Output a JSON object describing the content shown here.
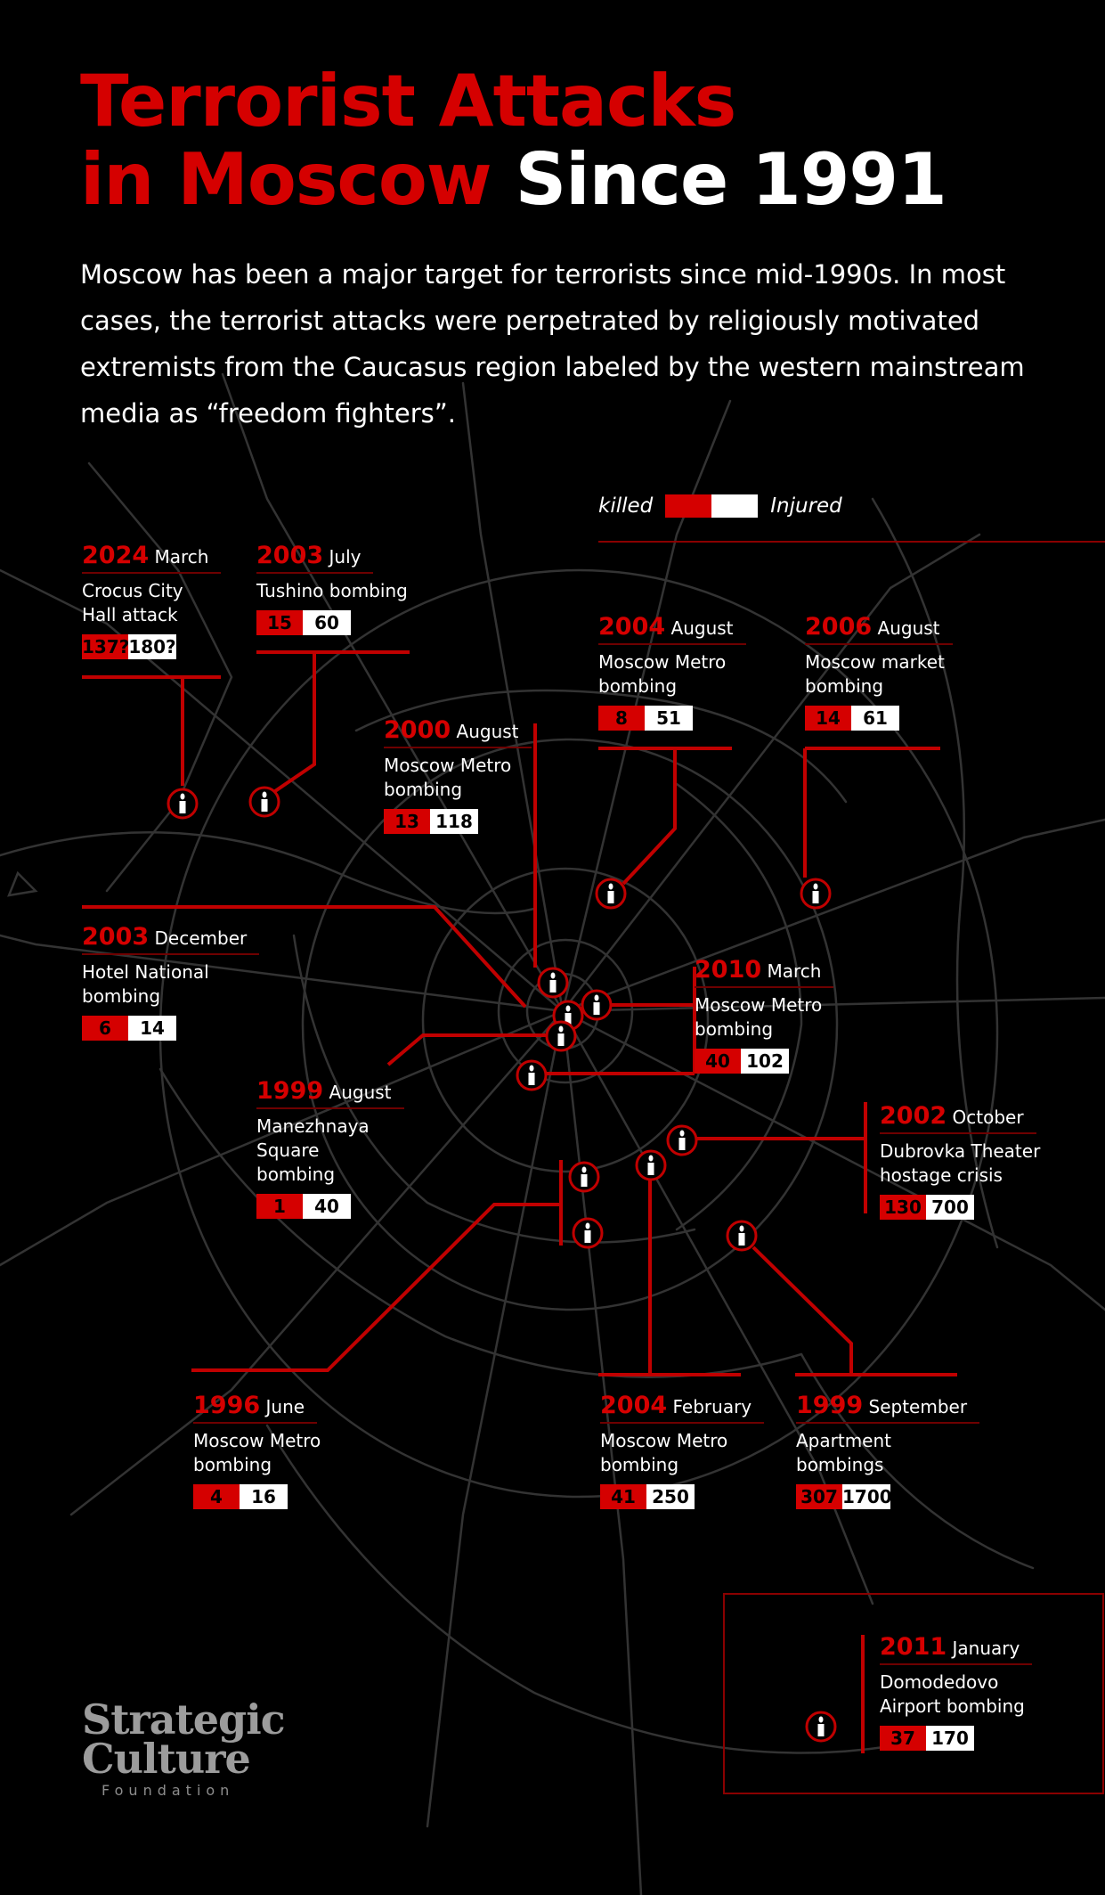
{
  "title": {
    "line1": "Terrorist Attacks",
    "line2_red": "in Moscow",
    "line2_white": "Since 1991"
  },
  "intro": "Moscow has been a major target for terrorists since mid-1990s. In most cases, the terrorist attacks were perpetrated by religiously motivated extremists from the Caucasus region labeled by the western mainstream media as “freedom fighters”.",
  "legend": {
    "killed": "killed",
    "injured": "Injured"
  },
  "colors": {
    "accent": "#d50000",
    "background": "#000000",
    "roads": "#3a3a3a"
  },
  "marker_icon": "candle-icon",
  "events": [
    {
      "id": "2024-march",
      "year": "2024",
      "month": "March",
      "name": "Crocus City Hall attack",
      "name_lines": [
        "Crocus City",
        "Hall attack"
      ],
      "killed": "137?",
      "injured": "180?"
    },
    {
      "id": "2003-july",
      "year": "2003",
      "month": "July",
      "name_lines": [
        "Tushino bombing"
      ],
      "killed": "15",
      "injured": "60"
    },
    {
      "id": "2004-august",
      "year": "2004",
      "month": "August",
      "name_lines": [
        "Moscow Metro",
        "bombing"
      ],
      "killed": "8",
      "injured": "51"
    },
    {
      "id": "2006-august",
      "year": "2006",
      "month": "August",
      "name_lines": [
        "Moscow market",
        "bombing"
      ],
      "killed": "14",
      "injured": "61"
    },
    {
      "id": "2000-august",
      "year": "2000",
      "month": "August",
      "name_lines": [
        "Moscow Metro",
        "bombing"
      ],
      "killed": "13",
      "injured": "118"
    },
    {
      "id": "2003-december",
      "year": "2003",
      "month": "December",
      "name_lines": [
        "Hotel National",
        "bombing"
      ],
      "killed": "6",
      "injured": "14"
    },
    {
      "id": "2010-march",
      "year": "2010",
      "month": "March",
      "name_lines": [
        "Moscow Metro",
        "bombing"
      ],
      "killed": "40",
      "injured": "102"
    },
    {
      "id": "1999-august",
      "year": "1999",
      "month": "August",
      "name_lines": [
        "Manezhnaya",
        "Square",
        "bombing"
      ],
      "killed": "1",
      "injured": "40"
    },
    {
      "id": "2002-october",
      "year": "2002",
      "month": "October",
      "name_lines": [
        "Dubrovka Theater",
        "hostage crisis"
      ],
      "killed": "130",
      "injured": "700"
    },
    {
      "id": "1996-june",
      "year": "1996",
      "month": "June",
      "name_lines": [
        "Moscow Metro",
        "bombing"
      ],
      "killed": "4",
      "injured": "16"
    },
    {
      "id": "2004-february",
      "year": "2004",
      "month": "February",
      "name_lines": [
        "Moscow Metro",
        "bombing"
      ],
      "killed": "41",
      "injured": "250"
    },
    {
      "id": "1999-september",
      "year": "1999",
      "month": "September",
      "name_lines": [
        "Apartment",
        "bombings"
      ],
      "killed": "307",
      "injured": "1700"
    },
    {
      "id": "2011-january",
      "year": "2011",
      "month": "January",
      "name_lines": [
        "Domodedovo",
        "Airport bombing"
      ],
      "killed": "37",
      "injured": "170"
    }
  ],
  "logo": {
    "line1": "Strategic",
    "line2": "Culture",
    "line3": "Foundation"
  }
}
